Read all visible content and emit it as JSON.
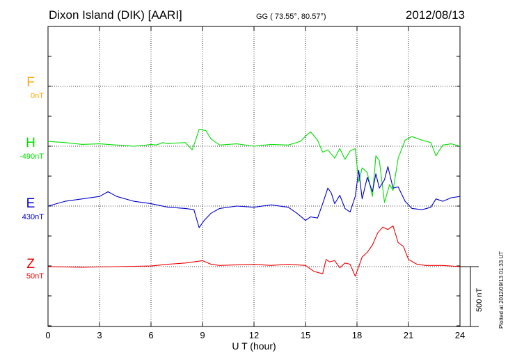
{
  "header": {
    "station": "Dixon Island (DIK)  [AARI]",
    "coords": "GG ( 73.55°,  80.57°)",
    "date": "2012/08/13"
  },
  "plotted_note": "Plotted at 2012/09/13 01:33 UT",
  "colors": {
    "F": "#ffa500",
    "H": "#00e000",
    "E": "#0000cc",
    "Z": "#ee0000",
    "axis": "#000000"
  },
  "chart_data": {
    "type": "line",
    "title": "Dixon Island (DIK)  [AARI]",
    "xlabel": "U T (hour)",
    "ylabel": "",
    "xlim": [
      0,
      24
    ],
    "x_ticks": [
      "0",
      "3",
      "6",
      "9",
      "12",
      "15",
      "18",
      "21",
      "24"
    ],
    "scale_bar": "500 nT",
    "grid": true,
    "series": [
      {
        "name": "F",
        "baseline": "0nT",
        "color": "#ffa500",
        "x": [],
        "values": []
      },
      {
        "name": "H",
        "baseline": "-490nT",
        "color": "#00e000",
        "x": [
          0,
          1,
          2,
          3,
          4,
          5,
          5.5,
          6,
          6.3,
          6.7,
          7,
          7.3,
          8,
          8.4,
          8.6,
          8.8,
          9.2,
          9.5,
          10,
          11,
          12,
          13,
          14,
          14.7,
          15,
          15.3,
          15.7,
          16,
          16.3,
          16.7,
          17,
          17.3,
          17.6,
          17.9,
          18.1,
          18.3,
          18.6,
          18.9,
          19.1,
          19.3,
          19.6,
          19.9,
          20.1,
          20.4,
          20.8,
          21.2,
          21.8,
          22.3,
          22.6,
          23,
          23.5,
          24
        ],
        "values": [
          40,
          30,
          15,
          20,
          10,
          0,
          5,
          15,
          10,
          30,
          20,
          25,
          30,
          -30,
          50,
          140,
          130,
          60,
          10,
          20,
          0,
          15,
          10,
          40,
          85,
          120,
          50,
          -50,
          -30,
          -100,
          -20,
          -110,
          -40,
          -20,
          -300,
          -180,
          -220,
          -420,
          -80,
          -120,
          -470,
          -320,
          -370,
          -100,
          50,
          80,
          50,
          30,
          -80,
          10,
          20,
          0
        ]
      },
      {
        "name": "E",
        "baseline": "430nT",
        "color": "#0000cc",
        "x": [
          0,
          1,
          2,
          3,
          3.5,
          4,
          5,
          6,
          7,
          8,
          8.5,
          8.8,
          9.1,
          9.5,
          10,
          11,
          12,
          13,
          14,
          14.5,
          15,
          15.3,
          15.7,
          16,
          16.3,
          16.5,
          16.7,
          17,
          17.3,
          17.6,
          17.9,
          18.1,
          18.3,
          18.6,
          18.9,
          19.1,
          19.3,
          19.6,
          19.8,
          20.1,
          20.4,
          20.8,
          21.2,
          21.8,
          22.3,
          22.6,
          23,
          23.5,
          24
        ],
        "values": [
          0,
          40,
          60,
          80,
          120,
          80,
          40,
          20,
          -10,
          -20,
          -30,
          -180,
          -120,
          -60,
          -20,
          0,
          -10,
          10,
          -10,
          -60,
          -120,
          -90,
          -100,
          20,
          150,
          110,
          20,
          90,
          -20,
          -50,
          80,
          300,
          60,
          240,
          120,
          270,
          150,
          220,
          330,
          150,
          160,
          40,
          -20,
          -30,
          -10,
          60,
          40,
          70,
          80
        ]
      },
      {
        "name": "Z",
        "baseline": "50nT",
        "color": "#ee0000",
        "x": [
          0,
          2,
          4,
          6,
          7,
          8,
          9,
          9.5,
          10,
          12,
          13,
          14,
          15,
          15.5,
          16,
          16.2,
          16.4,
          16.7,
          17,
          17.3,
          17.6,
          17.9,
          18.1,
          18.3,
          18.6,
          18.9,
          19.2,
          19.5,
          19.8,
          20.1,
          20.4,
          20.7,
          21,
          21.5,
          22,
          23,
          24
        ],
        "values": [
          0,
          -5,
          0,
          5,
          20,
          30,
          50,
          20,
          10,
          20,
          10,
          20,
          10,
          -40,
          -60,
          60,
          40,
          50,
          -10,
          30,
          20,
          -80,
          0,
          80,
          120,
          180,
          280,
          330,
          310,
          340,
          200,
          170,
          60,
          20,
          10,
          10,
          0
        ]
      }
    ]
  }
}
